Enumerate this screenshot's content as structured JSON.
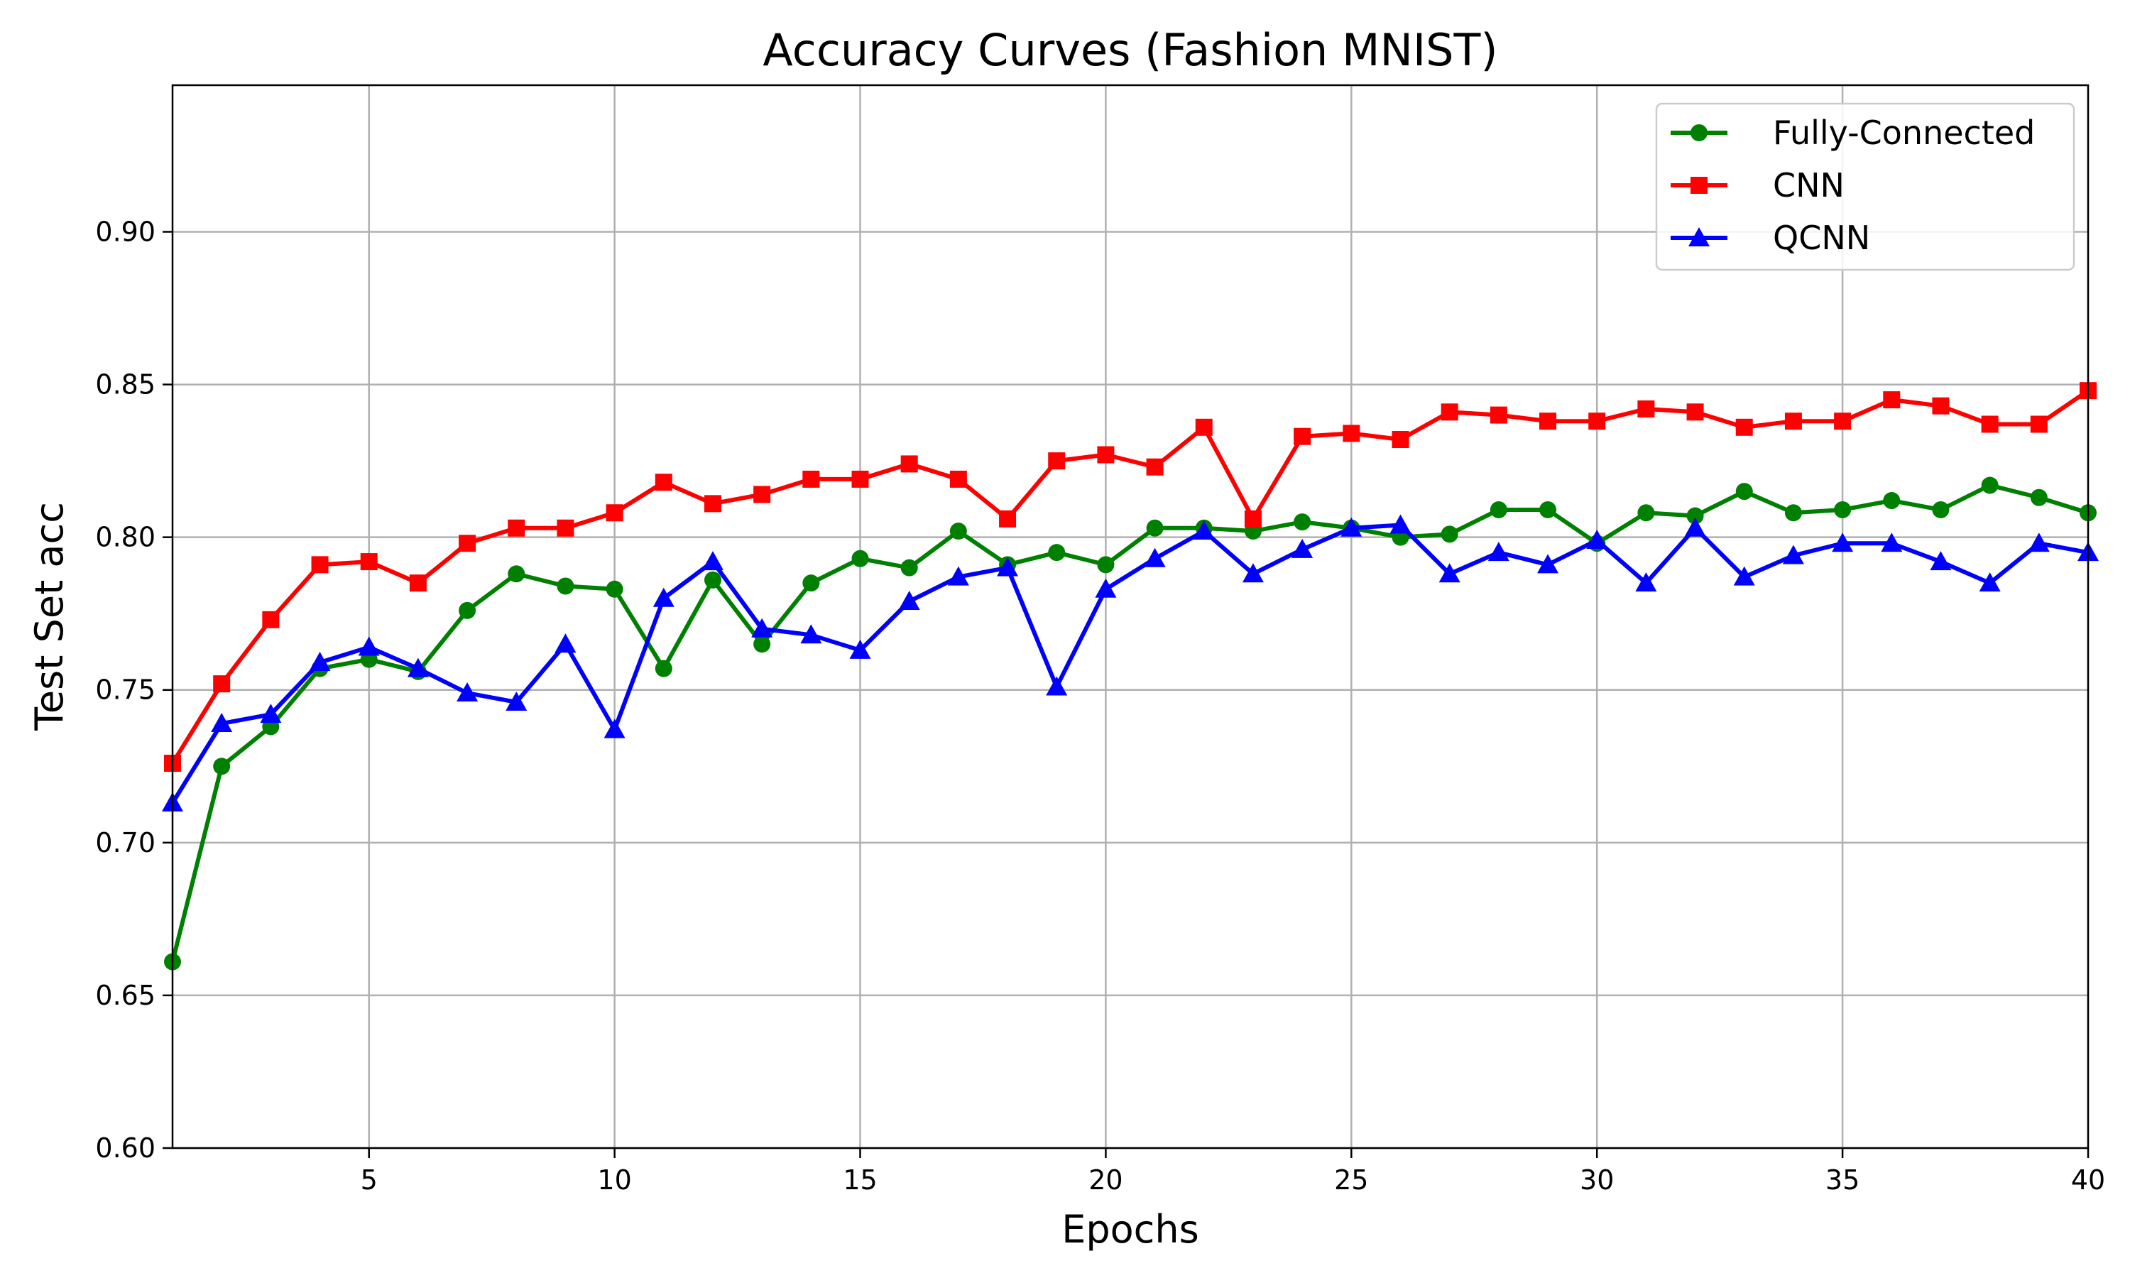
{
  "chart_data": {
    "type": "line",
    "title": "Accuracy Curves (Fashion MNIST)",
    "xlabel": "Epochs",
    "ylabel": "Test Set acc",
    "xlim": [
      1,
      40
    ],
    "ylim": [
      0.6,
      0.948
    ],
    "x_ticks": [
      5,
      10,
      15,
      20,
      25,
      30,
      35,
      40
    ],
    "y_ticks": [
      0.6,
      0.65,
      0.7,
      0.75,
      0.8,
      0.85,
      0.9
    ],
    "y_tick_labels": [
      "0.60",
      "0.65",
      "0.70",
      "0.75",
      "0.80",
      "0.85",
      "0.90"
    ],
    "grid": true,
    "legend_position": "top-right",
    "x": [
      1,
      2,
      3,
      4,
      5,
      6,
      7,
      8,
      9,
      10,
      11,
      12,
      13,
      14,
      15,
      16,
      17,
      18,
      19,
      20,
      21,
      22,
      23,
      24,
      25,
      26,
      27,
      28,
      29,
      30,
      31,
      32,
      33,
      34,
      35,
      36,
      37,
      38,
      39,
      40
    ],
    "series": [
      {
        "name": "Fully-Connected",
        "color": "#008000",
        "marker": "circle",
        "values": [
          0.661,
          0.725,
          0.738,
          0.757,
          0.76,
          0.756,
          0.776,
          0.788,
          0.784,
          0.783,
          0.757,
          0.786,
          0.765,
          0.785,
          0.793,
          0.79,
          0.802,
          0.791,
          0.795,
          0.791,
          0.803,
          0.803,
          0.802,
          0.805,
          0.803,
          0.8,
          0.801,
          0.809,
          0.809,
          0.798,
          0.808,
          0.807,
          0.815,
          0.808,
          0.809,
          0.812,
          0.809,
          0.817,
          0.813,
          0.808
        ]
      },
      {
        "name": "CNN",
        "color": "#ff0000",
        "marker": "square",
        "values": [
          0.726,
          0.752,
          0.773,
          0.791,
          0.792,
          0.785,
          0.798,
          0.803,
          0.803,
          0.808,
          0.818,
          0.811,
          0.814,
          0.819,
          0.819,
          0.824,
          0.819,
          0.806,
          0.825,
          0.827,
          0.823,
          0.836,
          0.806,
          0.833,
          0.834,
          0.832,
          0.841,
          0.84,
          0.838,
          0.838,
          0.842,
          0.841,
          0.836,
          0.838,
          0.838,
          0.845,
          0.843,
          0.837,
          0.837,
          0.848
        ]
      },
      {
        "name": "QCNN",
        "color": "#0000ff",
        "marker": "triangle",
        "values": [
          0.713,
          0.739,
          0.742,
          0.759,
          0.764,
          0.757,
          0.749,
          0.746,
          0.765,
          0.737,
          0.78,
          0.792,
          0.77,
          0.768,
          0.763,
          0.779,
          0.787,
          0.79,
          0.751,
          0.783,
          0.793,
          0.802,
          0.788,
          0.796,
          0.803,
          0.804,
          0.788,
          0.795,
          0.791,
          0.799,
          0.785,
          0.803,
          0.787,
          0.794,
          0.798,
          0.798,
          0.792,
          0.785,
          0.798,
          0.795
        ]
      }
    ]
  }
}
